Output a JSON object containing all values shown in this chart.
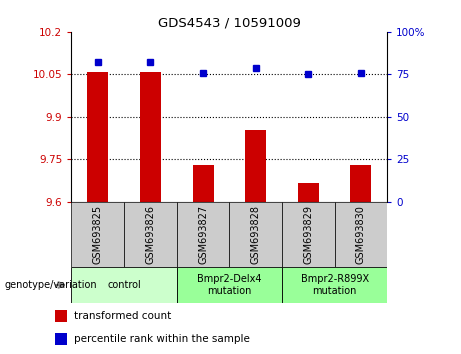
{
  "title": "GDS4543 / 10591009",
  "samples": [
    "GSM693825",
    "GSM693826",
    "GSM693827",
    "GSM693828",
    "GSM693829",
    "GSM693830"
  ],
  "bar_values": [
    10.06,
    10.06,
    9.73,
    9.855,
    9.665,
    9.73
  ],
  "dot_values": [
    82,
    82,
    76,
    79,
    75,
    76
  ],
  "ylim_left": [
    9.6,
    10.2
  ],
  "ylim_right": [
    0,
    100
  ],
  "yticks_left": [
    9.6,
    9.75,
    9.9,
    10.05,
    10.2
  ],
  "yticks_left_labels": [
    "9.6",
    "9.75",
    "9.9",
    "10.05",
    "10.2"
  ],
  "yticks_right": [
    0,
    25,
    50,
    75,
    100
  ],
  "yticks_right_labels": [
    "0",
    "25",
    "50",
    "75",
    "100%"
  ],
  "hlines": [
    10.05,
    9.9,
    9.75
  ],
  "bar_color": "#cc0000",
  "dot_color": "#0000cc",
  "bar_bottom": 9.6,
  "group_spans": [
    {
      "start": 0,
      "end": 1,
      "label": "control",
      "color": "#ccffcc"
    },
    {
      "start": 2,
      "end": 3,
      "label": "Bmpr2-Delx4\nmutation",
      "color": "#99ff99"
    },
    {
      "start": 4,
      "end": 5,
      "label": "Bmpr2-R899X\nmutation",
      "color": "#99ff99"
    }
  ],
  "genotype_label": "genotype/variation",
  "legend_items": [
    {
      "color": "#cc0000",
      "label": "transformed count"
    },
    {
      "color": "#0000cc",
      "label": "percentile rank within the sample"
    }
  ],
  "tick_area_color": "#cccccc",
  "genotype_arrow_color": "#888888"
}
